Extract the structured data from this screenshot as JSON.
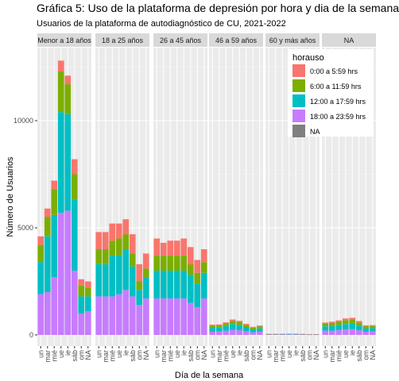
{
  "chart_data": {
    "type": "bar",
    "stacked": true,
    "faceted": true,
    "title": "Gráfica 5: Uso de la plataforma de depresión por hora y dia de la semana",
    "subtitle": "Usuarios de la plataforma de autodiagnóstico de CU, 2021-2022",
    "xlabel": "Día de la semana",
    "ylabel": "Número de Usuarios",
    "ylim": [
      0,
      13500
    ],
    "yticks": [
      0,
      5000,
      10000
    ],
    "ytick_labels": [
      "0",
      "5000",
      "10000"
    ],
    "categories": [
      "un",
      "mar",
      "mié",
      "ue",
      "ie",
      "sáb",
      "om",
      "NA"
    ],
    "grid": true,
    "legend": {
      "title": "horauso",
      "placement": "top-right",
      "entries": [
        "0:00 a 5:59 hrs",
        "6:00 a 11:59 hrs",
        "12:00 a 17:59 hrs",
        "18:00 a 23:59 hrs",
        "NA"
      ]
    },
    "colors": {
      "0:00 a 5:59 hrs": "#f8766d",
      "6:00 a 11:59 hrs": "#7cae00",
      "12:00 a 17:59 hrs": "#00bfc4",
      "18:00 a 23:59 hrs": "#c77cff",
      "NA": "#7f7f7f"
    },
    "stack_order": [
      "18:00 a 23:59 hrs",
      "12:00 a 17:59 hrs",
      "6:00 a 11:59 hrs",
      "0:00 a 5:59 hrs",
      "NA"
    ],
    "panels": [
      {
        "label": "Menor a 18 años",
        "series": [
          {
            "name": "0:00 a 5:59 hrs",
            "values": [
              400,
              400,
              400,
              500,
              400,
              700,
              300,
              300
            ]
          },
          {
            "name": "6:00 a 11:59 hrs",
            "values": [
              800,
              900,
              1200,
              1900,
              1400,
              1200,
              500,
              400
            ]
          },
          {
            "name": "12:00 a 17:59 hrs",
            "values": [
              1500,
              2600,
              2900,
              4700,
              4500,
              3300,
              800,
              700
            ]
          },
          {
            "name": "18:00 a 23:59 hrs",
            "values": [
              1900,
              2000,
              2700,
              5700,
              5800,
              3000,
              1000,
              1100
            ]
          },
          {
            "name": "NA",
            "values": [
              0,
              0,
              0,
              0,
              0,
              0,
              0,
              0
            ]
          }
        ]
      },
      {
        "label": "18 a 25 años",
        "series": [
          {
            "name": "0:00 a 5:59 hrs",
            "values": [
              800,
              800,
              800,
              700,
              700,
              900,
              800,
              700
            ]
          },
          {
            "name": "6:00 a 11:59 hrs",
            "values": [
              700,
              700,
              700,
              800,
              700,
              600,
              400,
              400
            ]
          },
          {
            "name": "12:00 a 17:59 hrs",
            "values": [
              1500,
              1500,
              1900,
              1800,
              1900,
              1400,
              700,
              1000
            ]
          },
          {
            "name": "18:00 a 23:59 hrs",
            "values": [
              1800,
              1800,
              1800,
              1900,
              2100,
              1800,
              1400,
              1700
            ]
          },
          {
            "name": "NA",
            "values": [
              0,
              0,
              0,
              0,
              0,
              0,
              0,
              0
            ]
          }
        ]
      },
      {
        "label": "26 a 45 años",
        "series": [
          {
            "name": "0:00 a 5:59 hrs",
            "values": [
              800,
              600,
              700,
              700,
              800,
              800,
              600,
              600
            ]
          },
          {
            "name": "6:00 a 11:59 hrs",
            "values": [
              700,
              700,
              700,
              700,
              700,
              500,
              500,
              500
            ]
          },
          {
            "name": "12:00 a 17:59 hrs",
            "values": [
              1300,
              1300,
              1300,
              1300,
              1300,
              1300,
              1100,
              1200
            ]
          },
          {
            "name": "18:00 a 23:59 hrs",
            "values": [
              1700,
              1700,
              1700,
              1700,
              1700,
              1500,
              1300,
              1700
            ]
          },
          {
            "name": "NA",
            "values": [
              0,
              0,
              0,
              0,
              0,
              0,
              0,
              0
            ]
          }
        ]
      },
      {
        "label": "46 a 59 años",
        "series": [
          {
            "name": "0:00 a 5:59 hrs",
            "values": [
              50,
              50,
              50,
              60,
              60,
              50,
              40,
              40
            ]
          },
          {
            "name": "6:00 a 11:59 hrs",
            "values": [
              100,
              100,
              120,
              150,
              130,
              100,
              80,
              90
            ]
          },
          {
            "name": "12:00 a 17:59 hrs",
            "values": [
              180,
              180,
              220,
              280,
              250,
              200,
              140,
              160
            ]
          },
          {
            "name": "18:00 a 23:59 hrs",
            "values": [
              150,
              160,
              200,
              230,
              220,
              170,
              120,
              150
            ]
          },
          {
            "name": "NA",
            "values": [
              0,
              0,
              0,
              0,
              0,
              0,
              0,
              0
            ]
          }
        ]
      },
      {
        "label": "60 y más años",
        "series": [
          {
            "name": "0:00 a 5:59 hrs",
            "values": [
              5,
              5,
              5,
              5,
              5,
              5,
              5,
              5
            ]
          },
          {
            "name": "6:00 a 11:59 hrs",
            "values": [
              10,
              10,
              10,
              12,
              12,
              10,
              8,
              8
            ]
          },
          {
            "name": "12:00 a 17:59 hrs",
            "values": [
              15,
              15,
              18,
              20,
              18,
              15,
              12,
              12
            ]
          },
          {
            "name": "18:00 a 23:59 hrs",
            "values": [
              20,
              20,
              20,
              22,
              22,
              18,
              15,
              15
            ]
          },
          {
            "name": "NA",
            "values": [
              0,
              0,
              0,
              0,
              0,
              0,
              0,
              0
            ]
          }
        ]
      },
      {
        "label": "NA",
        "series": [
          {
            "name": "0:00 a 5:59 hrs",
            "values": [
              60,
              60,
              70,
              80,
              80,
              70,
              50,
              40
            ]
          },
          {
            "name": "6:00 a 11:59 hrs",
            "values": [
              120,
              140,
              140,
              180,
              170,
              140,
              90,
              100
            ]
          },
          {
            "name": "12:00 a 17:59 hrs",
            "values": [
              200,
              220,
              240,
              260,
              280,
              220,
              160,
              160
            ]
          },
          {
            "name": "18:00 a 23:59 hrs",
            "values": [
              200,
              200,
              230,
              250,
              270,
              220,
              150,
              160
            ]
          },
          {
            "name": "NA",
            "values": [
              0,
              0,
              0,
              0,
              0,
              0,
              0,
              0
            ]
          }
        ]
      }
    ]
  }
}
